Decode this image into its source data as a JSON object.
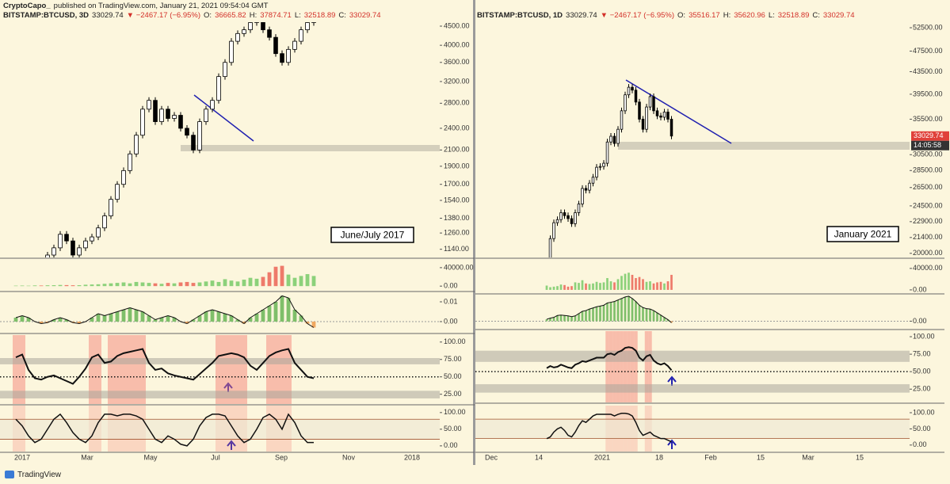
{
  "header": {
    "author": "CryptoCapo_",
    "published": "published on TradingView.com, January 21, 2021 09:54:04 GMT"
  },
  "footer": "TradingView",
  "panels": [
    {
      "symbol": "BITSTAMP:BTCUSD, 3D",
      "last": "33029.74",
      "change": "▼ −2467.17 (−6.95%)",
      "ohlc": [
        {
          "key": "O:",
          "value": "36665.82"
        },
        {
          "key": "H:",
          "value": "37874.71"
        },
        {
          "key": "L:",
          "value": "32518.89"
        },
        {
          "key": "C:",
          "value": "33029.74"
        }
      ],
      "annotation": "June/July 2017",
      "time_labels": [
        "2017",
        "Mar",
        "May",
        "Jul",
        "Sep",
        "Nov",
        "2018"
      ],
      "price": {
        "log_scale": true,
        "ylim": [
          1084,
          4611
        ],
        "yticks": [
          {
            "value": 4500,
            "label": "4500.00"
          },
          {
            "value": 4000,
            "label": "4000.00"
          },
          {
            "value": 3600,
            "label": "3600.00"
          },
          {
            "value": 3200,
            "label": "3200.00"
          },
          {
            "value": 2800,
            "label": "2800.00"
          },
          {
            "value": 2400,
            "label": "2400.00"
          },
          {
            "value": 2100,
            "label": "2100.00"
          },
          {
            "value": 1900,
            "label": "1900.00"
          },
          {
            "value": 1700,
            "label": "1700.00"
          },
          {
            "value": 1540,
            "label": "1540.00"
          },
          {
            "value": 1380,
            "label": "1380.00"
          },
          {
            "value": 1260,
            "label": "1260.00"
          },
          {
            "value": 1140,
            "label": "1140.00"
          }
        ],
        "values": [
          1000,
          1000,
          1020,
          1050,
          1000,
          1100,
          1150,
          1250,
          1200,
          1100,
          1150,
          1200,
          1230,
          1300,
          1400,
          1550,
          1700,
          1850,
          2050,
          2300,
          2700,
          2850,
          2500,
          2700,
          2550,
          2600,
          2400,
          2300,
          2100,
          2500,
          2700,
          2850,
          3300,
          3600,
          4100,
          4300,
          4400,
          4600,
          4700,
          4400,
          4200,
          3800,
          3600,
          3900,
          4100,
          4400,
          4600,
          4800
        ]
      },
      "volume": {
        "ylim": [
          -10000,
          57000
        ],
        "yticks": [
          {
            "value": 40000,
            "label": "40000.00"
          },
          {
            "value": 0,
            "label": "0.00"
          }
        ],
        "values": [
          1000,
          1200,
          900,
          1500,
          1300,
          1800,
          2000,
          2500,
          2200,
          1800,
          2000,
          3000,
          3500,
          4000,
          5000,
          6000,
          7000,
          8000,
          6000,
          9000,
          8000,
          7000,
          6000,
          5000,
          7000,
          6000,
          8000,
          9000,
          7000,
          8000,
          10000,
          12000,
          9000,
          15000,
          12000,
          10000,
          14000,
          18000,
          16000,
          20000,
          30000,
          42000,
          44000,
          25000,
          18000,
          22000,
          26000,
          22000
        ]
      },
      "macd": {
        "ylim": [
          -0.0056,
          0.0144
        ],
        "yticks": [
          {
            "value": 0.01,
            "label": "0.01"
          },
          {
            "value": 0,
            "label": "0.00"
          }
        ],
        "values": [
          0.002,
          0.003,
          0.002,
          0,
          -0.001,
          -0.0005,
          0.001,
          0.002,
          0.001,
          -0.0005,
          -0.001,
          0,
          0.002,
          0.004,
          0.003,
          0.004,
          0.005,
          0.006,
          0.007,
          0.006,
          0.005,
          0.003,
          0.001,
          0.002,
          0.003,
          0.002,
          0,
          -0.001,
          0.001,
          0.003,
          0.005,
          0.006,
          0.005,
          0.004,
          0.003,
          0.001,
          -0.001,
          0.002,
          0.004,
          0.006,
          0.008,
          0.01,
          0.013,
          0.012,
          0.006,
          0.003,
          -0.001,
          -0.003
        ]
      },
      "rsi": {
        "ylim": [
          11,
          110
        ],
        "yticks": [
          {
            "value": 100,
            "label": "100.00"
          },
          {
            "value": 75,
            "label": "75.00"
          },
          {
            "value": 50,
            "label": "50.00"
          },
          {
            "value": 25,
            "label": "25.00"
          }
        ],
        "bands": [
          [
            68,
            77
          ],
          [
            19,
            30
          ]
        ],
        "midline": 50,
        "highlight_above": 70,
        "values": [
          78,
          82,
          60,
          48,
          46,
          50,
          52,
          48,
          44,
          40,
          50,
          62,
          78,
          82,
          70,
          72,
          80,
          84,
          86,
          88,
          90,
          70,
          60,
          62,
          55,
          52,
          50,
          48,
          46,
          54,
          62,
          70,
          80,
          82,
          84,
          82,
          78,
          66,
          60,
          70,
          80,
          85,
          88,
          90,
          70,
          60,
          50,
          48
        ]
      },
      "stoch": {
        "ylim": [
          -17,
          121
        ],
        "yticks": [
          {
            "value": 100,
            "label": "100.00"
          },
          {
            "value": 50,
            "label": "50.00"
          },
          {
            "value": 0,
            "label": "0.00"
          }
        ],
        "levels": [
          80,
          20
        ],
        "values": [
          80,
          60,
          30,
          10,
          20,
          50,
          80,
          95,
          70,
          40,
          20,
          10,
          30,
          70,
          95,
          95,
          90,
          95,
          95,
          90,
          80,
          50,
          20,
          10,
          30,
          20,
          5,
          0,
          20,
          60,
          85,
          95,
          95,
          90,
          60,
          30,
          10,
          20,
          50,
          85,
          95,
          80,
          50,
          95,
          70,
          30,
          10,
          10
        ]
      }
    },
    {
      "symbol": "BITSTAMP:BTCUSD, 1D",
      "last": "33029.74",
      "change": "▼ −2467.17 (−6.95%)",
      "ohlc": [
        {
          "key": "O:",
          "value": "35516.17"
        },
        {
          "key": "H:",
          "value": "35620.96"
        },
        {
          "key": "L:",
          "value": "32518.89"
        },
        {
          "key": "C:",
          "value": "33029.74"
        }
      ],
      "annotation": "January 2021",
      "current_price": {
        "value": 33029.74,
        "label": "33029.74"
      },
      "countdown": "14:05:58",
      "time_labels": [
        "Dec",
        "14",
        "2021",
        "18",
        "Feb",
        "15",
        "Mar",
        "15"
      ],
      "price": {
        "log_scale": true,
        "ylim": [
          19650,
          53760
        ],
        "yticks": [
          {
            "value": 52500,
            "label": "52500.00"
          },
          {
            "value": 47500,
            "label": "47500.00"
          },
          {
            "value": 43500,
            "label": "43500.00"
          },
          {
            "value": 39500,
            "label": "39500.00"
          },
          {
            "value": 35500,
            "label": "35500.00"
          },
          {
            "value": 30500,
            "label": "30500.00"
          },
          {
            "value": 28500,
            "label": "28500.00"
          },
          {
            "value": 26500,
            "label": "26500.00"
          },
          {
            "value": 24500,
            "label": "24500.00"
          },
          {
            "value": 22900,
            "label": "22900.00"
          },
          {
            "value": 21400,
            "label": "21400.00"
          },
          {
            "value": 20000,
            "label": "20000.00"
          }
        ],
        "values": [
          19400,
          21300,
          22800,
          23100,
          23800,
          23500,
          23200,
          22700,
          23800,
          24700,
          26400,
          26200,
          27000,
          27700,
          28900,
          29000,
          29400,
          32200,
          33000,
          32000,
          34000,
          36800,
          39400,
          40700,
          40200,
          38200,
          35500,
          34000,
          37400,
          39100,
          36800,
          36000,
          35800,
          36600,
          35500,
          33030
        ]
      },
      "volume": {
        "ylim": [
          -6000,
          56000
        ],
        "yticks": [
          {
            "value": 40000,
            "label": "40000.00"
          },
          {
            "value": 0,
            "label": "0.00"
          }
        ],
        "values": [
          8000,
          5000,
          6000,
          7000,
          10000,
          9000,
          6000,
          7000,
          14000,
          13000,
          18000,
          12000,
          11000,
          12000,
          15000,
          13000,
          14000,
          22000,
          16000,
          14000,
          20000,
          26000,
          30000,
          32000,
          28000,
          22000,
          24000,
          20000,
          15000,
          16000,
          12000,
          14000,
          15000,
          12000,
          16000,
          28000
        ]
      },
      "macd": {
        "ylim": [
          -200,
          700
        ],
        "yticks": [
          {
            "value": 0,
            "label": "0.00"
          }
        ],
        "values": [
          50,
          80,
          100,
          150,
          160,
          150,
          140,
          120,
          140,
          200,
          260,
          280,
          320,
          350,
          380,
          400,
          420,
          480,
          500,
          520,
          560,
          600,
          640,
          660,
          600,
          520,
          420,
          360,
          330,
          320,
          280,
          220,
          160,
          100,
          40,
          -40
        ]
      },
      "rsi": {
        "ylim": [
          6,
          108
        ],
        "yticks": [
          {
            "value": 100,
            "label": "100.00"
          },
          {
            "value": 75,
            "label": "75.00"
          },
          {
            "value": 50,
            "label": "50.00"
          },
          {
            "value": 25,
            "label": "25.00"
          }
        ],
        "bands": [
          [
            64,
            80
          ],
          [
            20,
            32
          ]
        ],
        "midline": 50,
        "highlight_above": 70,
        "values": [
          55,
          58,
          56,
          57,
          60,
          58,
          56,
          55,
          60,
          62,
          65,
          64,
          66,
          68,
          70,
          70,
          70,
          75,
          76,
          74,
          78,
          80,
          84,
          85,
          84,
          80,
          70,
          66,
          72,
          74,
          66,
          62,
          60,
          62,
          58,
          52
        ]
      },
      "stoch": {
        "ylim": [
          -20,
          122
        ],
        "yticks": [
          {
            "value": 100,
            "label": "100.00"
          },
          {
            "value": 50,
            "label": "50.00"
          },
          {
            "value": 0,
            "label": "0.00"
          }
        ],
        "levels": [
          80,
          20
        ],
        "values": [
          20,
          25,
          40,
          50,
          55,
          45,
          30,
          25,
          40,
          60,
          75,
          70,
          80,
          90,
          95,
          95,
          95,
          95,
          95,
          90,
          95,
          98,
          98,
          96,
          90,
          70,
          45,
          30,
          35,
          40,
          30,
          25,
          20,
          20,
          15,
          10
        ]
      }
    }
  ]
}
